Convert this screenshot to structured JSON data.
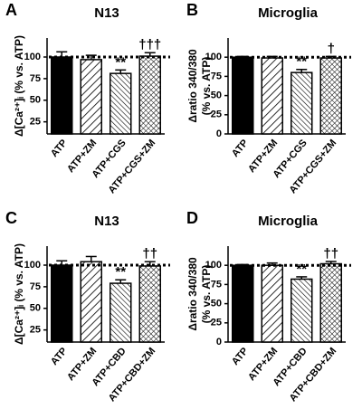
{
  "chart_data": [
    {
      "type": "bar",
      "panel": "A",
      "title": "N13",
      "ylabel": [
        "Δ[Ca²⁺]ᵢ (% vs. ATP)"
      ],
      "categories": [
        "ATP",
        "ATP+ZM",
        "ATP+CGS",
        "ATP+CGS+ZM"
      ],
      "values": [
        100,
        97,
        81,
        101
      ],
      "errors": [
        6,
        5,
        4,
        4
      ],
      "annotations": [
        null,
        null,
        "**",
        "†††"
      ],
      "patterns": [
        "solid",
        "forward-hatch",
        "back-hatch",
        "cross-hatch"
      ],
      "color": "#000000",
      "reference_line": 100,
      "ylim": [
        11,
        122
      ],
      "yticks": [
        25,
        50,
        75,
        100
      ]
    },
    {
      "type": "bar",
      "panel": "B",
      "title": "Microglia",
      "ylabel": [
        "Δratio 340/380",
        "(% vs. ATP)"
      ],
      "categories": [
        "ATP",
        "ATP+ZM",
        "ATP+CGS",
        "ATP+CGS+ZM"
      ],
      "values": [
        100,
        99,
        80,
        99
      ],
      "errors": [
        1,
        2,
        4,
        2
      ],
      "annotations": [
        null,
        null,
        "**",
        "†"
      ],
      "patterns": [
        "solid",
        "forward-hatch",
        "back-hatch",
        "cross-hatch"
      ],
      "color": "#000000",
      "reference_line": 100,
      "ylim": [
        0,
        125
      ],
      "yticks": [
        0,
        25,
        50,
        75,
        100
      ]
    },
    {
      "type": "bar",
      "panel": "C",
      "title": "N13",
      "ylabel": [
        "Δ[Ca²⁺]ᵢ (% vs. ATP)"
      ],
      "categories": [
        "ATP",
        "ATP+ZM",
        "ATP+CBD",
        "ATP+CBD+ZM"
      ],
      "values": [
        100,
        104,
        79,
        99
      ],
      "errors": [
        5,
        6,
        4,
        5
      ],
      "annotations": [
        null,
        null,
        "**",
        "††"
      ],
      "patterns": [
        "solid",
        "forward-hatch",
        "back-hatch",
        "cross-hatch"
      ],
      "color": "#000000",
      "reference_line": 100,
      "ylim": [
        11,
        122
      ],
      "yticks": [
        25,
        50,
        75,
        100
      ]
    },
    {
      "type": "bar",
      "panel": "D",
      "title": "Microglia",
      "ylabel": [
        "Δratio 340/380",
        "(% vs. ATP)"
      ],
      "categories": [
        "ATP",
        "ATP+ZM",
        "ATP+CBD",
        "ATP+CBD+ZM"
      ],
      "values": [
        100,
        100,
        82,
        102
      ],
      "errors": [
        1,
        3,
        3,
        3
      ],
      "annotations": [
        null,
        null,
        "**",
        "††"
      ],
      "patterns": [
        "solid",
        "forward-hatch",
        "back-hatch",
        "cross-hatch"
      ],
      "color": "#000000",
      "reference_line": 100,
      "ylim": [
        0,
        125
      ],
      "yticks": [
        0,
        25,
        50,
        75,
        100
      ]
    }
  ]
}
